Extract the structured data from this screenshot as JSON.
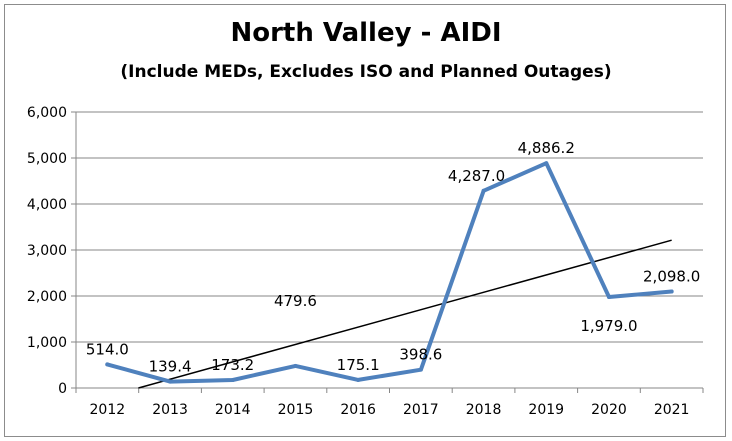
{
  "chart_data": {
    "type": "line",
    "title": "North Valley - AIDI",
    "subtitle": "(Include MEDs, Excludes ISO and Planned Outages)",
    "xlabel": "",
    "ylabel": "",
    "categories": [
      "2012",
      "2013",
      "2014",
      "2015",
      "2016",
      "2017",
      "2018",
      "2019",
      "2020",
      "2021"
    ],
    "series": [
      {
        "values": [
          514.0,
          139.4,
          173.2,
          479.6,
          175.1,
          398.6,
          4287.0,
          4886.2,
          1979.0,
          2098.0
        ],
        "labels": [
          "514.0",
          "139.4",
          "173.2",
          "479.6",
          "175.1",
          "398.6",
          "4,287.0",
          "4,886.2",
          "1,979.0",
          "2,098.0"
        ],
        "color": "#4f81bd"
      }
    ],
    "trendline": {
      "type": "linear",
      "color": "#000000"
    },
    "yticks": [
      "0",
      "1,000",
      "2,000",
      "3,000",
      "4,000",
      "5,000",
      "6,000"
    ],
    "ylim": [
      0,
      6000
    ],
    "grid": true,
    "legend": "none"
  }
}
